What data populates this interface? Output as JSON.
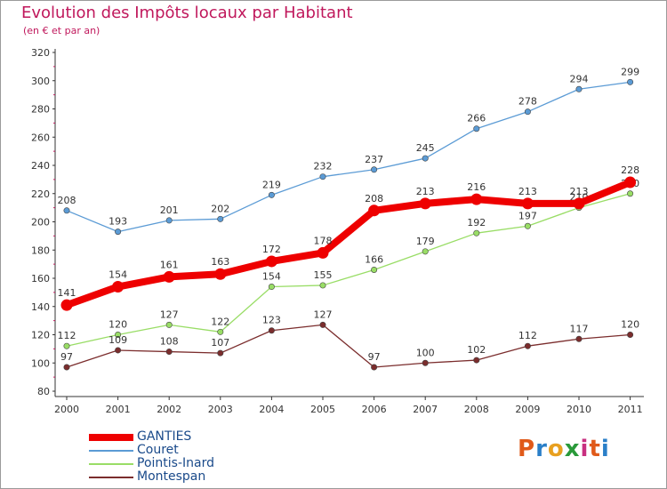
{
  "header": {
    "title": "Evolution des Impôts locaux par Habitant",
    "subtitle": "(en € et par an)"
  },
  "logo": {
    "text": "Proxiti",
    "letter_colors": [
      "#e05a1a",
      "#2a7fc8",
      "#e8a020",
      "#2a9a3a",
      "#c83080",
      "#e05a1a",
      "#2a7fc8"
    ]
  },
  "chart_data": {
    "type": "line",
    "x": [
      "2000",
      "2001",
      "2002",
      "2003",
      "2004",
      "2005",
      "2006",
      "2007",
      "2008",
      "2009",
      "2010",
      "2011"
    ],
    "ylim": [
      80,
      320
    ],
    "yticks": [
      80,
      100,
      120,
      140,
      160,
      180,
      200,
      220,
      240,
      260,
      280,
      300,
      320
    ],
    "grid": false,
    "legend_position": "bottom-left",
    "series": [
      {
        "name": "GANTIES",
        "color": "#ee0000",
        "values": [
          141,
          154,
          161,
          163,
          172,
          178,
          208,
          213,
          216,
          213,
          213,
          228
        ]
      },
      {
        "name": "Couret",
        "color": "#5b9bd5",
        "values": [
          208,
          193,
          201,
          202,
          219,
          232,
          237,
          245,
          266,
          278,
          294,
          299
        ]
      },
      {
        "name": "Pointis-Inard",
        "color": "#99dd66",
        "values": [
          112,
          120,
          127,
          122,
          154,
          155,
          166,
          179,
          192,
          197,
          210,
          220
        ]
      },
      {
        "name": "Montespan",
        "color": "#7b2d2d",
        "values": [
          97,
          109,
          108,
          107,
          123,
          127,
          97,
          100,
          102,
          112,
          117,
          120
        ]
      }
    ]
  }
}
